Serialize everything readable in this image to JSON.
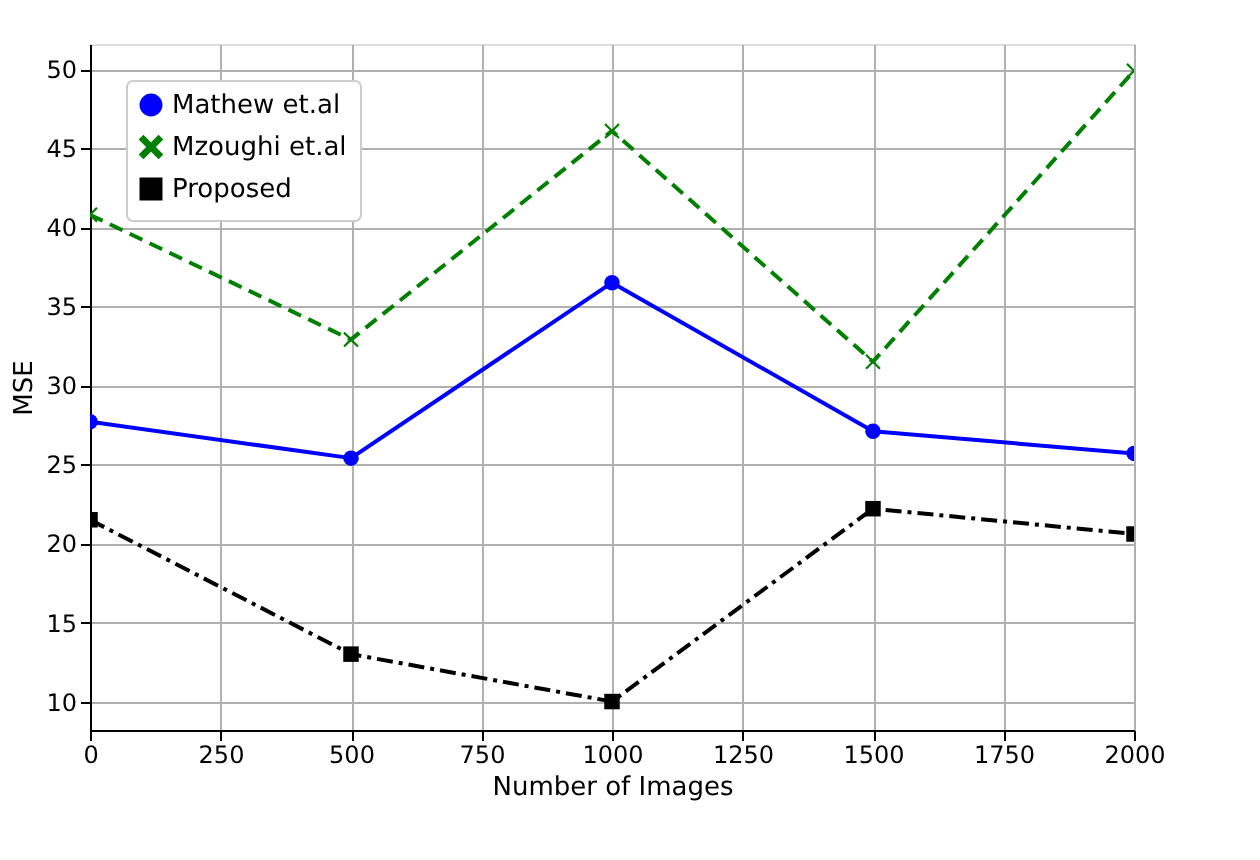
{
  "chart_data": {
    "type": "line",
    "xlabel": "Number of Images",
    "ylabel": "MSE",
    "x": [
      0,
      500,
      1000,
      1500,
      2000
    ],
    "series": [
      {
        "name": "Mathew et.al",
        "color": "#0000ff",
        "marker": "circle",
        "line_style": "solid",
        "values": [
          27.7,
          25.4,
          36.5,
          27.1,
          25.7
        ]
      },
      {
        "name": "Mzoughi et.al",
        "color": "#008000",
        "marker": "cross",
        "line_style": "dashed",
        "values": [
          40.8,
          32.9,
          46.1,
          31.5,
          49.9
        ]
      },
      {
        "name": "Proposed",
        "color": "#000000",
        "marker": "square",
        "line_style": "dashdot",
        "values": [
          21.5,
          13.0,
          10.0,
          22.2,
          20.6
        ]
      }
    ],
    "xlim": [
      0,
      2000
    ],
    "ylim": [
      8.2,
      51.6
    ],
    "xticks": [
      0,
      250,
      500,
      750,
      1000,
      1250,
      1500,
      1750,
      2000
    ],
    "yticks": [
      10,
      15,
      20,
      25,
      30,
      35,
      40,
      45,
      50
    ],
    "grid": true,
    "legend": "top left"
  }
}
